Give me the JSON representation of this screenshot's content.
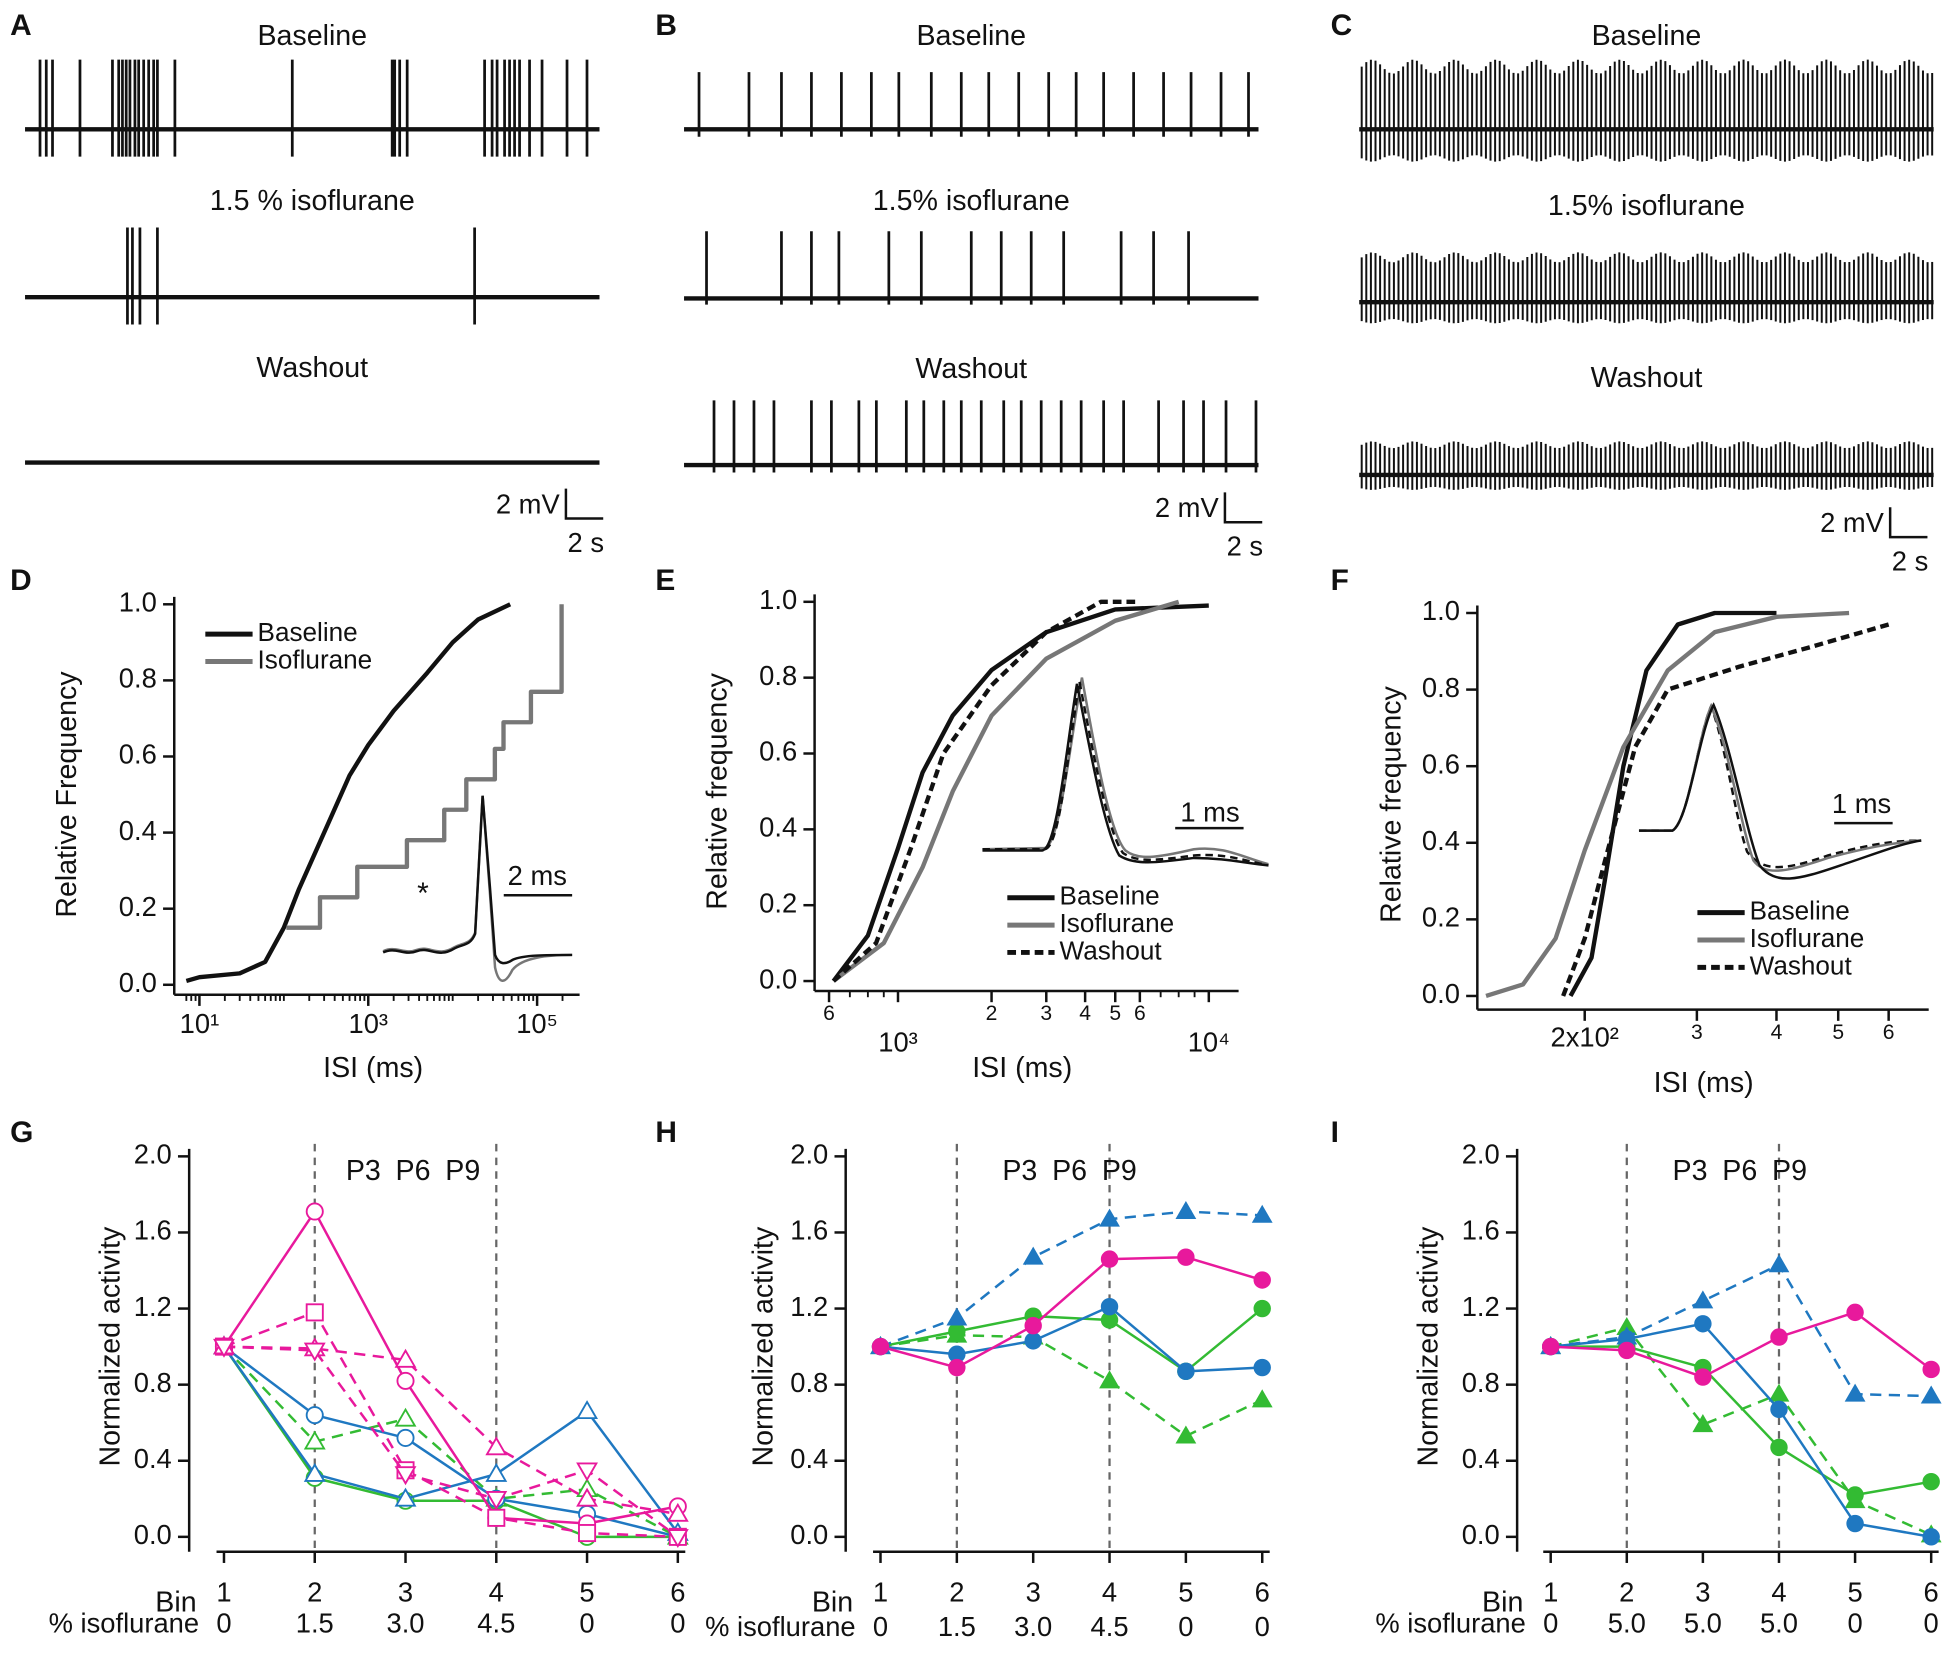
{
  "chart_data": [
    {
      "type": "trace",
      "panel": "A",
      "xlim": [
        0,
        23
      ],
      "traces": [
        {
          "label": "Baseline",
          "label_color": "#111",
          "spikes": [
            0.6,
            0.85,
            1.1,
            2.2,
            3.5,
            3.75,
            3.9,
            4.05,
            4.2,
            4.4,
            4.55,
            4.75,
            4.95,
            5.15,
            5.3,
            6.0,
            10.7,
            14.7,
            14.8,
            15.0,
            15.3,
            18.4,
            18.7,
            18.9,
            19.2,
            19.4,
            19.6,
            19.8,
            20.2,
            20.7,
            21.7,
            22.5
          ]
        },
        {
          "label": "1.5 % isoflurane",
          "label_color": "#777",
          "spikes": [
            4.1,
            4.3,
            4.6,
            5.3,
            18.0
          ]
        },
        {
          "label": "Washout",
          "label_color": "#111",
          "spikes": []
        }
      ],
      "scalebar": {
        "y_label": "2 mV",
        "x_label": "2 s"
      }
    },
    {
      "type": "trace",
      "panel": "B",
      "xlim": [
        0,
        23
      ],
      "traces": [
        {
          "label": "Baseline",
          "label_color": "#111",
          "spikes": [
            0.6,
            2.6,
            3.9,
            5.1,
            6.3,
            7.5,
            8.6,
            9.9,
            11.1,
            12.2,
            13.4,
            14.6,
            15.7,
            16.8,
            18.0,
            19.2,
            20.3,
            21.5,
            22.6
          ]
        },
        {
          "label": "1.5% isoflurane",
          "label_color": "#777",
          "spikes": [
            0.9,
            3.9,
            5.1,
            6.2,
            8.2,
            9.5,
            11.5,
            12.7,
            13.9,
            15.2,
            17.5,
            18.8,
            20.2
          ]
        },
        {
          "label": "Washout",
          "label_color": "#111",
          "spikes": [
            1.2,
            2.0,
            2.8,
            3.6,
            5.1,
            5.9,
            7.0,
            7.7,
            8.9,
            9.6,
            10.4,
            11.1,
            11.9,
            12.8,
            13.5,
            14.3,
            15.1,
            15.9,
            16.8,
            17.6,
            19.0,
            20.0,
            20.8,
            21.7,
            22.9
          ]
        }
      ],
      "scalebar": {
        "y_label": "2 mV",
        "x_label": "2 s"
      }
    },
    {
      "type": "trace",
      "panel": "C",
      "xlim": [
        0,
        23
      ],
      "traces": [
        {
          "label": "Baseline",
          "label_color": "#111"
        },
        {
          "label": "1.5% isoflurane",
          "label_color": "#777"
        },
        {
          "label": "Washout",
          "label_color": "#111"
        }
      ],
      "scalebar": {
        "y_label": "2 mV",
        "x_label": "2 s"
      }
    },
    {
      "type": "line",
      "panel": "D",
      "xlog": true,
      "xlim": [
        6.6,
        260000
      ],
      "ylim": [
        0,
        1
      ],
      "xticks": [
        {
          "value": 10,
          "label": "10¹"
        },
        {
          "value": 1000,
          "label": "10³"
        },
        {
          "value": 100000,
          "label": "10⁵"
        }
      ],
      "yticks": [
        {
          "value": 0,
          "label": "0.0"
        },
        0.2,
        0.4,
        0.6,
        0.8,
        {
          "value": 1,
          "label": "1.0"
        }
      ],
      "xlabel": "ISI (ms)",
      "ylabel": "Relative Frequency",
      "legend": "top-left",
      "inset_scale": "2 ms",
      "annotation": "*",
      "series": [
        {
          "name": "Baseline",
          "color": "#111",
          "x": [
            7,
            10,
            30,
            60,
            100,
            150,
            300,
            600,
            1000,
            2000,
            5000,
            10000,
            20000,
            48000
          ],
          "values": [
            0.01,
            0.02,
            0.03,
            0.06,
            0.15,
            0.25,
            0.4,
            0.55,
            0.63,
            0.72,
            0.82,
            0.9,
            0.96,
            1.0
          ]
        },
        {
          "name": "Isoflurane",
          "color": "#777",
          "step": true,
          "x": [
            107,
            268,
            741,
            2870,
            7940,
            14500,
            31600,
            40000,
            84500,
            195000,
            195000
          ],
          "values": [
            0.15,
            0.23,
            0.31,
            0.38,
            0.46,
            0.54,
            0.62,
            0.69,
            0.77,
            0.92,
            1.0
          ]
        }
      ]
    },
    {
      "type": "line",
      "panel": "E",
      "xlog": true,
      "xlim": [
        575,
        11800
      ],
      "ylim": [
        0,
        1
      ],
      "xticks": [
        {
          "value": 600,
          "label": "6"
        },
        {
          "value": 1000,
          "label": "10³"
        },
        {
          "value": 2000,
          "label": "2"
        },
        {
          "value": 3000,
          "label": "3"
        },
        {
          "value": 4000,
          "label": "4"
        },
        {
          "value": 5000,
          "label": "5"
        },
        {
          "value": 6000,
          "label": "6"
        },
        {
          "value": 10000,
          "label": "10⁴"
        }
      ],
      "yticks": [
        {
          "value": 0,
          "label": "0.0"
        },
        0.2,
        0.4,
        0.6,
        0.8,
        {
          "value": 1,
          "label": "1.0"
        }
      ],
      "xlabel": "ISI (ms)",
      "ylabel": "Relative frequency",
      "legend": "bottom-right",
      "inset_scale": "1 ms",
      "series": [
        {
          "name": "Baseline",
          "color": "#111",
          "x": [
            620,
            800,
            1000,
            1200,
            1500,
            2000,
            3000,
            5000,
            10000
          ],
          "values": [
            0.0,
            0.12,
            0.35,
            0.55,
            0.7,
            0.82,
            0.92,
            0.98,
            0.99
          ]
        },
        {
          "name": "Isoflurane",
          "color": "#777",
          "x": [
            620,
            900,
            1200,
            1500,
            2000,
            3000,
            5000,
            8000
          ],
          "values": [
            0.0,
            0.1,
            0.3,
            0.5,
            0.7,
            0.85,
            0.95,
            1.0
          ]
        },
        {
          "name": "Washout",
          "color": "#111",
          "dash": true,
          "x": [
            620,
            850,
            1100,
            1400,
            2000,
            3000,
            4500,
            6000
          ],
          "values": [
            0.0,
            0.1,
            0.35,
            0.6,
            0.78,
            0.92,
            1.0,
            1.0
          ]
        }
      ]
    },
    {
      "type": "line",
      "panel": "F",
      "xlog": true,
      "xlim": [
        140,
        675
      ],
      "ylim": [
        0,
        1
      ],
      "xticks": [
        {
          "value": 200,
          "label": "2x10²"
        },
        {
          "value": 300,
          "label": "3"
        },
        {
          "value": 400,
          "label": "4"
        },
        {
          "value": 500,
          "label": "5"
        },
        {
          "value": 600,
          "label": "6"
        }
      ],
      "yticks": [
        {
          "value": 0,
          "label": "0.0"
        },
        0.2,
        0.4,
        0.6,
        0.8,
        {
          "value": 1,
          "label": "1.0"
        }
      ],
      "xlabel": "ISI (ms)",
      "ylabel": "Relative frequency",
      "legend": "bottom-right",
      "inset_scale": "1 ms",
      "series": [
        {
          "name": "Baseline",
          "color": "#111",
          "x": [
            190,
            205,
            215,
            230,
            250,
            280,
            320,
            400
          ],
          "values": [
            0.0,
            0.1,
            0.3,
            0.6,
            0.85,
            0.97,
            1.0,
            1.0
          ]
        },
        {
          "name": "Isoflurane",
          "color": "#777",
          "x": [
            140,
            160,
            180,
            200,
            230,
            270,
            320,
            400,
            520
          ],
          "values": [
            0.0,
            0.03,
            0.15,
            0.38,
            0.65,
            0.85,
            0.95,
            0.99,
            1.0
          ]
        },
        {
          "name": "Washout",
          "color": "#111",
          "dash": true,
          "x": [
            185,
            200,
            215,
            240,
            270,
            350,
            450,
            600
          ],
          "values": [
            0.0,
            0.15,
            0.35,
            0.65,
            0.8,
            0.86,
            0.91,
            0.97
          ]
        }
      ]
    },
    {
      "type": "line",
      "panel": "G",
      "open_markers": true,
      "x": [
        1,
        2,
        3,
        4,
        5,
        6
      ],
      "xlim": [
        1,
        6
      ],
      "ylim": [
        0,
        2
      ],
      "xticks": [
        1,
        2,
        3,
        4,
        5,
        6
      ],
      "xticks2": [
        "0",
        "1.5",
        "3.0",
        "4.5",
        "0",
        "0"
      ],
      "yticks": [
        {
          "value": 0,
          "label": "0.0"
        },
        0.4,
        0.8,
        1.2,
        1.6,
        {
          "value": 2,
          "label": "2.0"
        }
      ],
      "xlabel": "Bin",
      "xlabel2": "% isoflurane",
      "ylabel": "Normalized activity",
      "vlines": [
        2,
        4
      ],
      "groups": [
        {
          "name": "P3",
          "color": "#33bb33"
        },
        {
          "name": "P6",
          "color": "#1f78c1"
        },
        {
          "name": "P9",
          "color": "#e8199c"
        }
      ],
      "series": [
        {
          "color": "#33bb33",
          "marker": "circle",
          "values": [
            1.0,
            0.31,
            0.19,
            0.19,
            0.0,
            0.0
          ]
        },
        {
          "color": "#33bb33",
          "marker": "triangle",
          "dash": true,
          "values": [
            1.0,
            0.5,
            0.62,
            0.2,
            0.25,
            0.0
          ]
        },
        {
          "color": "#1f78c1",
          "marker": "circle",
          "values": [
            1.0,
            0.64,
            0.52,
            0.2,
            0.12,
            0.0
          ]
        },
        {
          "color": "#1f78c1",
          "marker": "triangle",
          "values": [
            1.0,
            0.33,
            0.2,
            0.33,
            0.66,
            0.02
          ]
        },
        {
          "color": "#e8199c",
          "marker": "circle",
          "values": [
            1.0,
            1.71,
            0.82,
            0.1,
            0.07,
            0.16
          ]
        },
        {
          "color": "#e8199c",
          "marker": "square",
          "dash": true,
          "values": [
            1.0,
            1.18,
            0.35,
            0.1,
            0.02,
            0.0
          ]
        },
        {
          "color": "#e8199c",
          "marker": "triangle",
          "dash": true,
          "values": [
            1.0,
            0.99,
            0.93,
            0.47,
            0.2,
            0.12
          ]
        },
        {
          "color": "#e8199c",
          "marker": "triangle-down",
          "dash": true,
          "values": [
            1.0,
            0.98,
            0.33,
            0.2,
            0.35,
            0.0
          ]
        }
      ]
    },
    {
      "type": "line",
      "panel": "H",
      "open_markers": false,
      "x": [
        1,
        2,
        3,
        4,
        5,
        6
      ],
      "xlim": [
        1,
        6
      ],
      "ylim": [
        0,
        2
      ],
      "xticks": [
        1,
        2,
        3,
        4,
        5,
        6
      ],
      "xticks2": [
        "0",
        "1.5",
        "3.0",
        "4.5",
        "0",
        "0"
      ],
      "yticks": [
        {
          "value": 0,
          "label": "0.0"
        },
        0.4,
        0.8,
        1.2,
        1.6,
        {
          "value": 2,
          "label": "2.0"
        }
      ],
      "xlabel": "Bin",
      "xlabel2": "% isoflurane",
      "ylabel": "Normalized activity",
      "vlines": [
        2,
        4
      ],
      "groups": [
        {
          "name": "P3",
          "color": "#33bb33"
        },
        {
          "name": "P6",
          "color": "#1f78c1"
        },
        {
          "name": "P9",
          "color": "#e8199c"
        }
      ],
      "series": [
        {
          "color": "#33bb33",
          "marker": "circle",
          "values": [
            1.0,
            1.08,
            1.16,
            1.14,
            0.87,
            1.2
          ]
        },
        {
          "color": "#33bb33",
          "marker": "triangle",
          "dash": true,
          "values": [
            1.0,
            1.06,
            1.05,
            0.82,
            0.53,
            0.72
          ]
        },
        {
          "color": "#1f78c1",
          "marker": "circle",
          "values": [
            1.0,
            0.96,
            1.03,
            1.21,
            0.87,
            0.89
          ]
        },
        {
          "color": "#1f78c1",
          "marker": "triangle",
          "dash": true,
          "values": [
            1.0,
            1.15,
            1.47,
            1.67,
            1.71,
            1.69
          ]
        },
        {
          "color": "#e8199c",
          "marker": "circle",
          "values": [
            1.0,
            0.89,
            1.11,
            1.46,
            1.47,
            1.35
          ]
        }
      ]
    },
    {
      "type": "line",
      "panel": "I",
      "open_markers": false,
      "x": [
        1,
        2,
        3,
        4,
        5,
        6
      ],
      "xlim": [
        1,
        6
      ],
      "ylim": [
        0,
        2
      ],
      "xticks": [
        1,
        2,
        3,
        4,
        5,
        6
      ],
      "xticks2": [
        "0",
        "5.0",
        "5.0",
        "5.0",
        "0",
        "0"
      ],
      "yticks": [
        {
          "value": 0,
          "label": "0.0"
        },
        0.4,
        0.8,
        1.2,
        1.6,
        {
          "value": 2,
          "label": "2.0"
        }
      ],
      "xlabel": "Bin",
      "xlabel2": "% isoflurane",
      "ylabel": "Normalized activity",
      "vlines": [
        2,
        4
      ],
      "groups": [
        {
          "name": "P3",
          "color": "#33bb33"
        },
        {
          "name": "P6",
          "color": "#1f78c1"
        },
        {
          "name": "P9",
          "color": "#e8199c"
        }
      ],
      "series": [
        {
          "color": "#33bb33",
          "marker": "circle",
          "values": [
            1.0,
            1.0,
            0.89,
            0.47,
            0.22,
            0.29
          ]
        },
        {
          "color": "#33bb33",
          "marker": "triangle",
          "dash": true,
          "values": [
            1.0,
            1.1,
            0.59,
            0.75,
            0.19,
            0.01
          ]
        },
        {
          "color": "#1f78c1",
          "marker": "circle",
          "values": [
            1.0,
            1.04,
            1.12,
            0.67,
            0.07,
            0.0
          ]
        },
        {
          "color": "#1f78c1",
          "marker": "triangle",
          "dash": true,
          "values": [
            1.0,
            1.05,
            1.24,
            1.43,
            0.75,
            0.74
          ]
        },
        {
          "color": "#e8199c",
          "marker": "circle",
          "values": [
            1.0,
            0.98,
            0.84,
            1.05,
            1.18,
            0.88
          ]
        }
      ]
    }
  ]
}
